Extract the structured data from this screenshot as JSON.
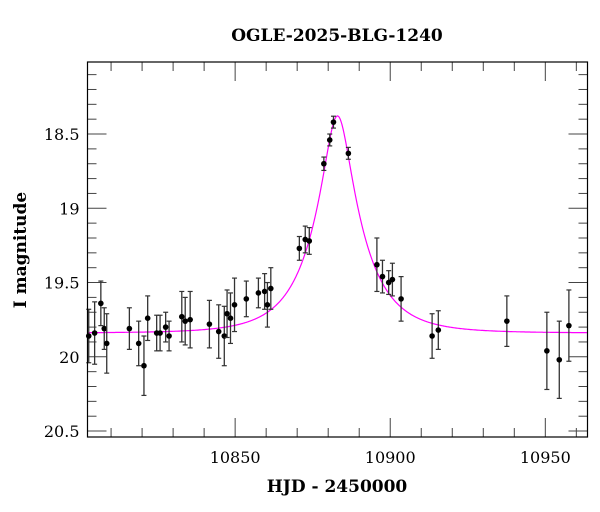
{
  "chart_data": {
    "type": "scatter",
    "title": "OGLE-2025-BLG-1240",
    "xlabel": "HJD - 2450000",
    "ylabel": "I magnitude",
    "xlim": [
      10802.4,
      10963.6
    ],
    "ylim": [
      20.54,
      18.015
    ],
    "y_inverted": true,
    "grid": false,
    "x_ticks": [
      "10850",
      "10900",
      "10950"
    ],
    "y_ticks": [
      "18.5",
      "19",
      "19.5",
      "20",
      "20.5"
    ],
    "colors": {
      "points": "#000000",
      "errorbars": "#333333",
      "model": "#ff00ff"
    },
    "series": [
      {
        "type": "errorbar-scatter",
        "x": [
          10802.8,
          10804.7,
          10806.7,
          10807.8,
          10808.6,
          10815.9,
          10818.9,
          10820.6,
          10821.8,
          10824.7,
          10825.8,
          10827.6,
          10828.7,
          10832.8,
          10833.9,
          10835.5,
          10841.7,
          10844.7,
          10846.5,
          10847.4,
          10848.5,
          10849.8,
          10853.6,
          10857.5,
          10859.5,
          10860.4,
          10861.5,
          10870.7,
          10872.6,
          10873.9,
          10878.6,
          10880.5,
          10881.7,
          10886.5,
          10895.7,
          10897.5,
          10899.5,
          10900.7,
          10903.5,
          10913.5,
          10915.5,
          10937.6,
          10950.5,
          10954.5,
          10957.6
        ],
        "y": [
          19.86,
          19.84,
          19.64,
          19.81,
          19.91,
          19.81,
          19.91,
          20.06,
          19.74,
          19.84,
          19.84,
          19.8,
          19.86,
          19.73,
          19.76,
          19.75,
          19.78,
          19.83,
          19.86,
          19.71,
          19.74,
          19.65,
          19.61,
          19.57,
          19.56,
          19.65,
          19.54,
          19.27,
          19.21,
          19.22,
          18.7,
          18.54,
          18.42,
          18.63,
          19.38,
          19.46,
          19.5,
          19.48,
          19.61,
          19.86,
          19.82,
          19.76,
          19.96,
          20.02,
          19.79
        ],
        "yerr": [
          0.18,
          0.21,
          0.15,
          0.14,
          0.2,
          0.14,
          0.15,
          0.2,
          0.15,
          0.12,
          0.12,
          0.1,
          0.1,
          0.17,
          0.16,
          0.19,
          0.16,
          0.18,
          0.2,
          0.16,
          0.17,
          0.18,
          0.12,
          0.1,
          0.12,
          0.15,
          0.14,
          0.08,
          0.09,
          0.09,
          0.045,
          0.04,
          0.04,
          0.04,
          0.18,
          0.11,
          0.08,
          0.11,
          0.15,
          0.15,
          0.13,
          0.17,
          0.26,
          0.26,
          0.24
        ]
      }
    ],
    "model": {
      "type": "point-lens",
      "t0": 10883.0,
      "u0": 0.267,
      "tE": 15.5,
      "baseline": 19.84
    }
  }
}
